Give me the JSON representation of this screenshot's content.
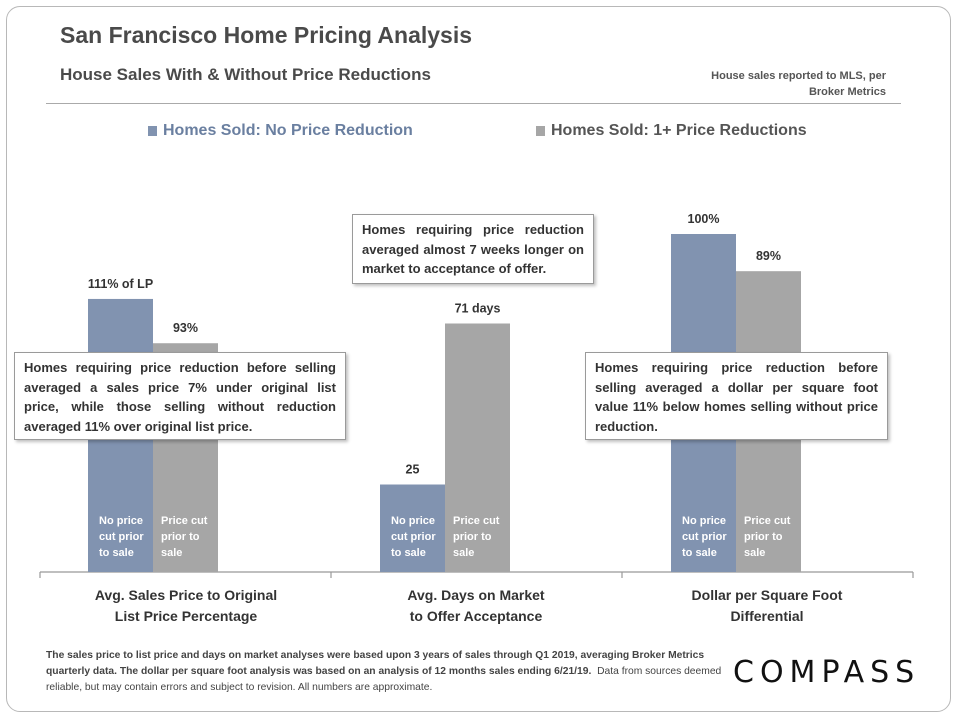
{
  "page": {
    "title": "San Francisco Home Pricing Analysis",
    "subtitle": "House Sales With & Without Price Reductions",
    "source_note": "House sales reported to MLS, per Broker Metrics",
    "callouts": [
      "Homes requiring price reduction before selling averaged a sales price 7% under original list price, while those selling without reduction averaged 11% over original list price.",
      "Homes requiring price reduction averaged almost 7 weeks longer on market to acceptance of offer.",
      "Homes requiring price reduction before selling averaged a dollar per square foot value 11% below homes selling without price reduction."
    ],
    "footnote_bold": "The sales price to list price and days on market analyses were based upon 3 years of sales through Q1 2019, averaging Broker Metrics quarterly data. The dollar per square foot analysis was based on an analysis of 12 months sales ending 6/21/19.",
    "footnote_normal": "Data from sources deemed reliable, but may contain errors and subject to revision. All numbers are approximate.",
    "logo": "COMPASS"
  },
  "chart_data": {
    "type": "bar",
    "categories": [
      "Avg. Sales Price to Original List Price Percentage",
      "Avg. Days on Market to Offer Acceptance",
      "Dollar per Square Foot Differential"
    ],
    "category_lines": [
      [
        "Avg. Sales Price to Original",
        "List Price Percentage"
      ],
      [
        "Avg. Days on Market",
        "to Offer Acceptance"
      ],
      [
        "Dollar per Square Foot",
        "Differential"
      ]
    ],
    "series": [
      {
        "name": "Homes Sold: No Price Reduction",
        "color": "#8193b0",
        "values": [
          111,
          25,
          100
        ],
        "labels": [
          "111% of LP",
          "25",
          "100%"
        ],
        "inbar_label": [
          "No price",
          "cut prior",
          "to sale"
        ]
      },
      {
        "name": "Homes Sold: 1+ Price Reductions",
        "color": "#a6a6a6",
        "values": [
          93,
          71,
          89
        ],
        "labels": [
          "93%",
          "71 days",
          "89%"
        ],
        "inbar_label": [
          "Price cut",
          "prior to",
          "sale"
        ]
      }
    ],
    "units": [
      "% of list price",
      "days",
      "% of no-reduction $/sq ft"
    ],
    "legend_position": "top",
    "grid": false
  }
}
